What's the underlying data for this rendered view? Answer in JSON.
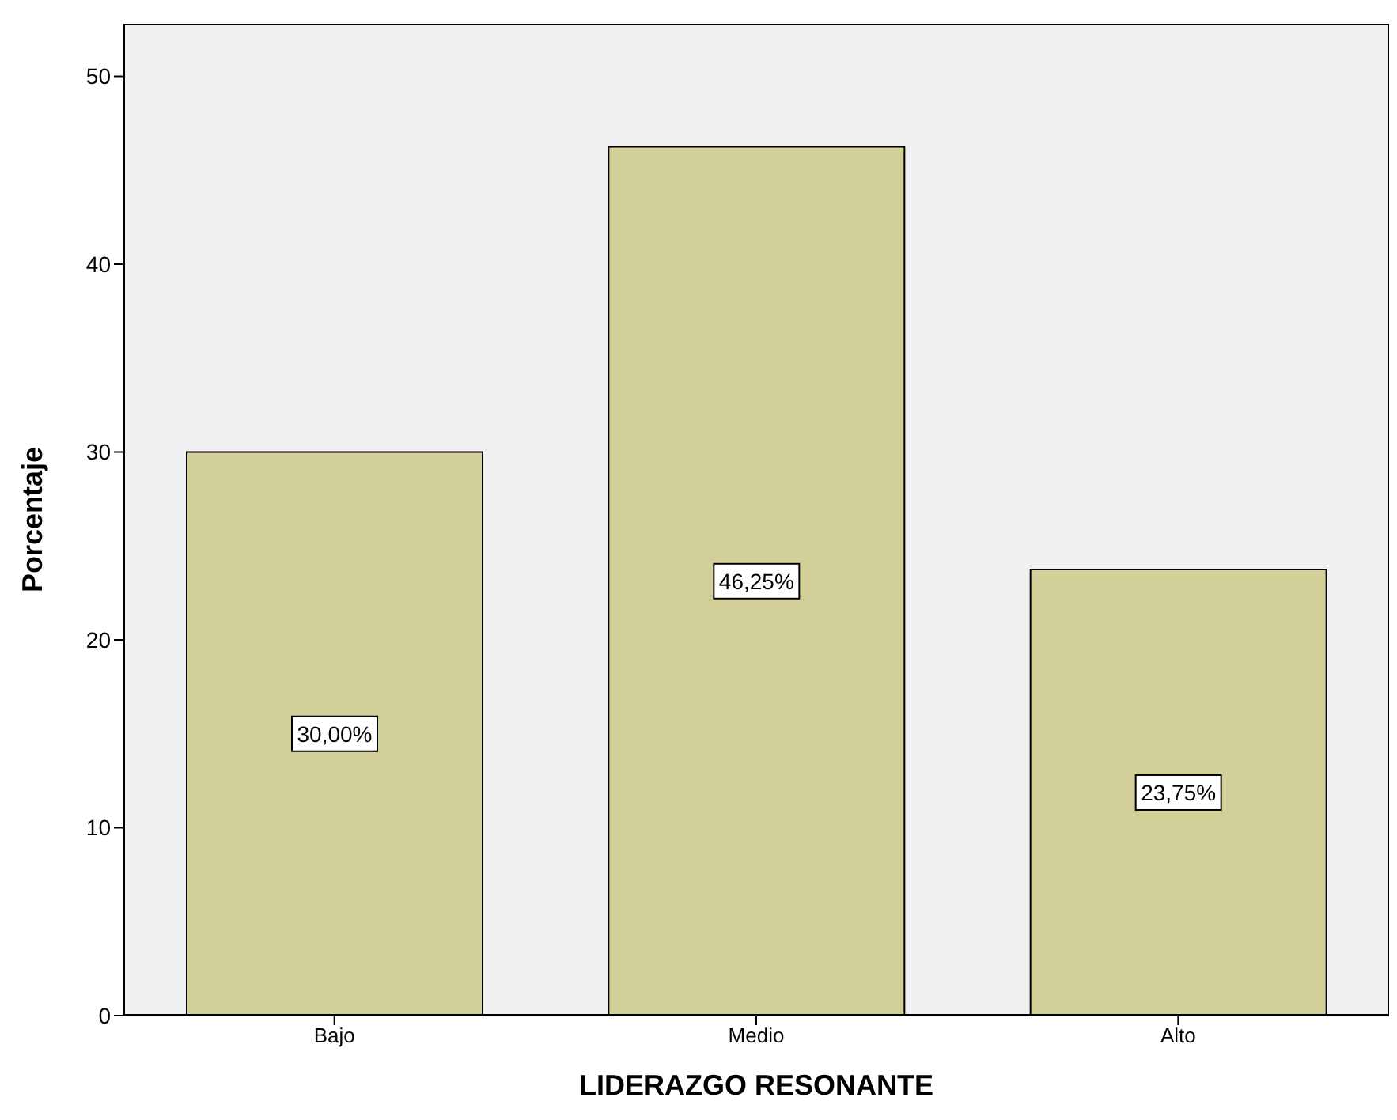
{
  "chart_data": {
    "type": "bar",
    "xlabel": "LIDERAZGO RESONANTE",
    "ylabel": "Porcentaje",
    "categories": [
      "Bajo",
      "Medio",
      "Alto"
    ],
    "values": [
      30.0,
      46.25,
      23.75
    ],
    "value_labels": [
      "30,00%",
      "46,25%",
      "23,75%"
    ],
    "color": "#d3cf98",
    "ylim": [
      0,
      52.8
    ],
    "yticks": [
      0,
      10,
      20,
      30,
      40,
      50
    ],
    "grid": false
  }
}
